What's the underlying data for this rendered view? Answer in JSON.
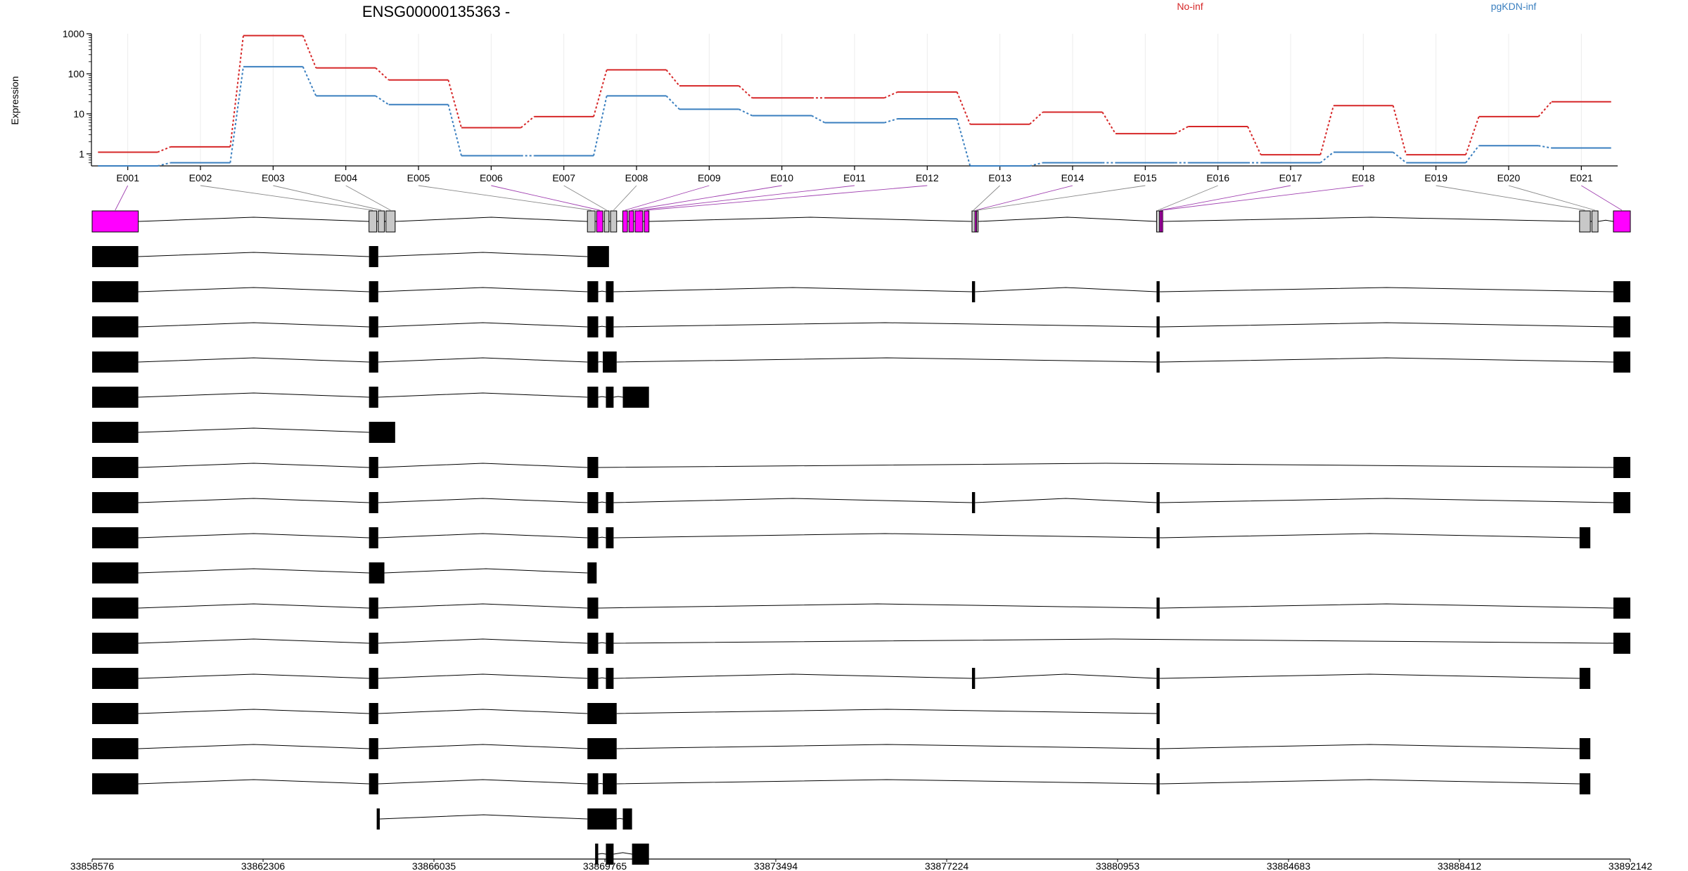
{
  "chart_data": {
    "type": "line",
    "title": "ENSG00000135363 -",
    "ylabel": "Expression",
    "yscale": "log",
    "ylim": [
      0.5,
      1000
    ],
    "yticks": [
      1,
      10,
      100,
      1000
    ],
    "ytick_labels": [
      "1",
      "10",
      "100",
      "1000"
    ],
    "grid": "vertical",
    "legend_position": "top",
    "categories": [
      "E001",
      "E002",
      "E003",
      "E004",
      "E005",
      "E006",
      "E007",
      "E008",
      "E009",
      "E010",
      "E011",
      "E012",
      "E013",
      "E014",
      "E015",
      "E016",
      "E017",
      "E018",
      "E019",
      "E020",
      "E021"
    ],
    "series": [
      {
        "name": "No-inf",
        "color": "#d62728",
        "values": [
          1.1,
          1.5,
          900,
          140,
          70,
          4.5,
          8.5,
          125,
          50,
          25,
          25,
          35,
          5.5,
          11,
          3.2,
          4.8,
          0.95,
          16,
          0.95,
          8.5,
          20
        ]
      },
      {
        "name": "pgKDN-inf",
        "color": "#3a7fbf",
        "values": [
          0.5,
          0.6,
          150,
          28,
          17,
          0.9,
          0.9,
          28,
          13,
          9,
          6,
          7.5,
          0.5,
          0.6,
          0.6,
          0.6,
          0.6,
          1.1,
          0.6,
          1.6,
          1.4
        ]
      }
    ],
    "genomic_axis": {
      "range": [
        33858576,
        33892142
      ],
      "tick_labels": [
        "33858576",
        "33862306",
        "33866035",
        "33869765",
        "33873494",
        "33877224",
        "33880953",
        "33884683",
        "33888412",
        "33892142"
      ]
    },
    "highlight_color": "#ff00ff",
    "gene_model": {
      "exons": [
        {
          "id": "E001",
          "start": 0.0,
          "end": 0.03,
          "highlight": true
        },
        {
          "id": "E002",
          "start": 0.18,
          "end": 0.185,
          "highlight": false
        },
        {
          "id": "E003",
          "start": 0.186,
          "end": 0.19,
          "highlight": false
        },
        {
          "id": "E004",
          "start": 0.191,
          "end": 0.197,
          "highlight": false
        },
        {
          "id": "E005",
          "start": 0.322,
          "end": 0.327,
          "highlight": false
        },
        {
          "id": "E006",
          "start": 0.328,
          "end": 0.332,
          "highlight": true
        },
        {
          "id": "E007",
          "start": 0.333,
          "end": 0.336,
          "highlight": false
        },
        {
          "id": "E008",
          "start": 0.337,
          "end": 0.341,
          "highlight": false
        },
        {
          "id": "E009",
          "start": 0.345,
          "end": 0.348,
          "highlight": true
        },
        {
          "id": "E010",
          "start": 0.349,
          "end": 0.352,
          "highlight": true
        },
        {
          "id": "E011",
          "start": 0.353,
          "end": 0.358,
          "highlight": true
        },
        {
          "id": "E012",
          "start": 0.359,
          "end": 0.362,
          "highlight": true
        },
        {
          "id": "E013",
          "start": 0.572,
          "end": 0.574,
          "highlight": false
        },
        {
          "id": "E014",
          "start": 0.574,
          "end": 0.575,
          "highlight": true
        },
        {
          "id": "E015",
          "start": 0.575,
          "end": 0.576,
          "highlight": false
        },
        {
          "id": "E016",
          "start": 0.692,
          "end": 0.694,
          "highlight": false
        },
        {
          "id": "E017",
          "start": 0.694,
          "end": 0.695,
          "highlight": true
        },
        {
          "id": "E018",
          "start": 0.695,
          "end": 0.696,
          "highlight": true
        },
        {
          "id": "E019",
          "start": 0.967,
          "end": 0.974,
          "highlight": false
        },
        {
          "id": "E020",
          "start": 0.975,
          "end": 0.979,
          "highlight": false
        },
        {
          "id": "E021",
          "start": 0.989,
          "end": 1.0,
          "highlight": true
        }
      ]
    },
    "transcripts": [
      {
        "exons": [
          [
            0,
            0.03
          ],
          [
            0.18,
            0.186
          ],
          [
            0.322,
            0.336
          ]
        ]
      },
      {
        "exons": [
          [
            0,
            0.03
          ],
          [
            0.18,
            0.186
          ],
          [
            0.322,
            0.329
          ],
          [
            0.334,
            0.339
          ],
          [
            0.572,
            0.574
          ],
          [
            0.692,
            0.694
          ],
          [
            0.989,
            1.0
          ]
        ]
      },
      {
        "exons": [
          [
            0,
            0.03
          ],
          [
            0.18,
            0.186
          ],
          [
            0.322,
            0.329
          ],
          [
            0.334,
            0.339
          ],
          [
            0.692,
            0.694
          ],
          [
            0.989,
            1.0
          ]
        ]
      },
      {
        "exons": [
          [
            0,
            0.03
          ],
          [
            0.18,
            0.186
          ],
          [
            0.322,
            0.329
          ],
          [
            0.332,
            0.341
          ],
          [
            0.692,
            0.694
          ],
          [
            0.989,
            1.0
          ]
        ]
      },
      {
        "exons": [
          [
            0,
            0.03
          ],
          [
            0.18,
            0.186
          ],
          [
            0.322,
            0.329
          ],
          [
            0.334,
            0.339
          ],
          [
            0.345,
            0.362
          ]
        ]
      },
      {
        "exons": [
          [
            0,
            0.03
          ],
          [
            0.18,
            0.197
          ]
        ]
      },
      {
        "exons": [
          [
            0,
            0.03
          ],
          [
            0.18,
            0.186
          ],
          [
            0.322,
            0.329
          ],
          [
            0.989,
            1.0
          ]
        ]
      },
      {
        "exons": [
          [
            0,
            0.03
          ],
          [
            0.18,
            0.186
          ],
          [
            0.322,
            0.329
          ],
          [
            0.334,
            0.339
          ],
          [
            0.572,
            0.574
          ],
          [
            0.692,
            0.694
          ],
          [
            0.989,
            1.0
          ]
        ]
      },
      {
        "exons": [
          [
            0,
            0.03
          ],
          [
            0.18,
            0.186
          ],
          [
            0.322,
            0.329
          ],
          [
            0.334,
            0.339
          ],
          [
            0.692,
            0.694
          ],
          [
            0.967,
            0.974
          ]
        ]
      },
      {
        "exons": [
          [
            0,
            0.03
          ],
          [
            0.18,
            0.19
          ],
          [
            0.322,
            0.328
          ]
        ]
      },
      {
        "exons": [
          [
            0,
            0.03
          ],
          [
            0.18,
            0.186
          ],
          [
            0.322,
            0.329
          ],
          [
            0.692,
            0.694
          ],
          [
            0.989,
            1.0
          ]
        ]
      },
      {
        "exons": [
          [
            0,
            0.03
          ],
          [
            0.18,
            0.186
          ],
          [
            0.322,
            0.329
          ],
          [
            0.334,
            0.339
          ],
          [
            0.989,
            1.0
          ]
        ]
      },
      {
        "exons": [
          [
            0,
            0.03
          ],
          [
            0.18,
            0.186
          ],
          [
            0.322,
            0.329
          ],
          [
            0.334,
            0.339
          ],
          [
            0.572,
            0.574
          ],
          [
            0.692,
            0.694
          ],
          [
            0.967,
            0.974
          ]
        ]
      },
      {
        "exons": [
          [
            0,
            0.03
          ],
          [
            0.18,
            0.186
          ],
          [
            0.322,
            0.341
          ],
          [
            0.692,
            0.694
          ]
        ]
      },
      {
        "exons": [
          [
            0,
            0.03
          ],
          [
            0.18,
            0.186
          ],
          [
            0.322,
            0.341
          ],
          [
            0.692,
            0.694
          ],
          [
            0.967,
            0.974
          ]
        ]
      },
      {
        "exons": [
          [
            0,
            0.03
          ],
          [
            0.18,
            0.186
          ],
          [
            0.322,
            0.329
          ],
          [
            0.332,
            0.341
          ],
          [
            0.692,
            0.694
          ],
          [
            0.967,
            0.974
          ]
        ]
      },
      {
        "exons": [
          [
            0.185,
            0.187
          ],
          [
            0.322,
            0.341
          ],
          [
            0.345,
            0.351
          ]
        ]
      },
      {
        "exons": [
          [
            0.327,
            0.329
          ],
          [
            0.334,
            0.339
          ],
          [
            0.351,
            0.362
          ]
        ]
      }
    ]
  }
}
